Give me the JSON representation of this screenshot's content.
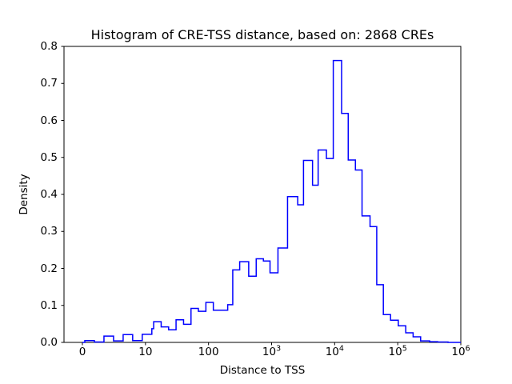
{
  "figure": {
    "background": "#ffffff",
    "axes_color": "#000000"
  },
  "chart_data": {
    "type": "histogram-step",
    "title": "Histogram of CRE-TSS distance, based on: 2868 CREs",
    "xlabel": "Distance to TSS",
    "ylabel": "Density",
    "n_samples_in_title": "2868",
    "line_color": "#0000ff",
    "x_scale": "symlog: linear from 0 to 10, then log decades up to 1e6",
    "x_ticks": [
      "0",
      "10",
      "100",
      "10^3",
      "10^4",
      "10^5",
      "10^6"
    ],
    "y_ticks": [
      "0.0",
      "0.1",
      "0.2",
      "0.3",
      "0.4",
      "0.5",
      "0.6",
      "0.7",
      "0.8"
    ],
    "ylim": [
      0,
      0.8
    ],
    "grid": false,
    "legend": "none",
    "bins": {
      "axis_pos_edges": [
        0.0,
        0.038,
        0.19,
        0.342,
        0.494,
        0.646,
        0.797,
        0.949,
        1.101,
        1.13,
        1.249,
        1.367,
        1.485,
        1.604,
        1.722,
        1.839,
        1.958,
        2.076,
        2.19,
        2.304,
        2.384,
        2.494,
        2.637,
        2.756,
        2.87,
        2.975,
        3.101,
        3.253,
        3.414,
        3.506,
        3.649,
        3.738,
        3.869,
        3.978,
        4.11,
        4.215,
        4.329,
        4.434,
        4.561,
        4.667,
        4.772,
        4.886,
        5.009,
        5.127,
        5.244,
        5.363,
        5.506,
        5.633,
        5.797,
        6.0
      ],
      "approx_value_edges": [
        0,
        0.4,
        1.9,
        3.4,
        4.9,
        6.5,
        8.0,
        9.5,
        12.6,
        13.5,
        17.7,
        23.3,
        30.6,
        40.2,
        52.7,
        69.0,
        90.8,
        119,
        155,
        201,
        242,
        312,
        434,
        570,
        741,
        944,
        1260,
        1790,
        2590,
        3210,
        4460,
        5470,
        7400,
        9510,
        12900,
        16400,
        21300,
        27200,
        36400,
        46500,
        59200,
        76900,
        102000,
        134000,
        175000,
        231000,
        321000,
        430000,
        627000,
        1000000
      ],
      "densities": [
        0.0,
        0.005,
        0.001,
        0.017,
        0.004,
        0.021,
        0.005,
        0.022,
        0.037,
        0.056,
        0.042,
        0.034,
        0.061,
        0.049,
        0.092,
        0.084,
        0.108,
        0.087,
        0.087,
        0.102,
        0.196,
        0.218,
        0.179,
        0.226,
        0.22,
        0.188,
        0.255,
        0.394,
        0.372,
        0.492,
        0.425,
        0.52,
        0.497,
        0.762,
        0.619,
        0.493,
        0.466,
        0.342,
        0.313,
        0.156,
        0.075,
        0.06,
        0.045,
        0.026,
        0.015,
        0.004,
        0.002,
        0.001,
        0.0
      ]
    }
  }
}
